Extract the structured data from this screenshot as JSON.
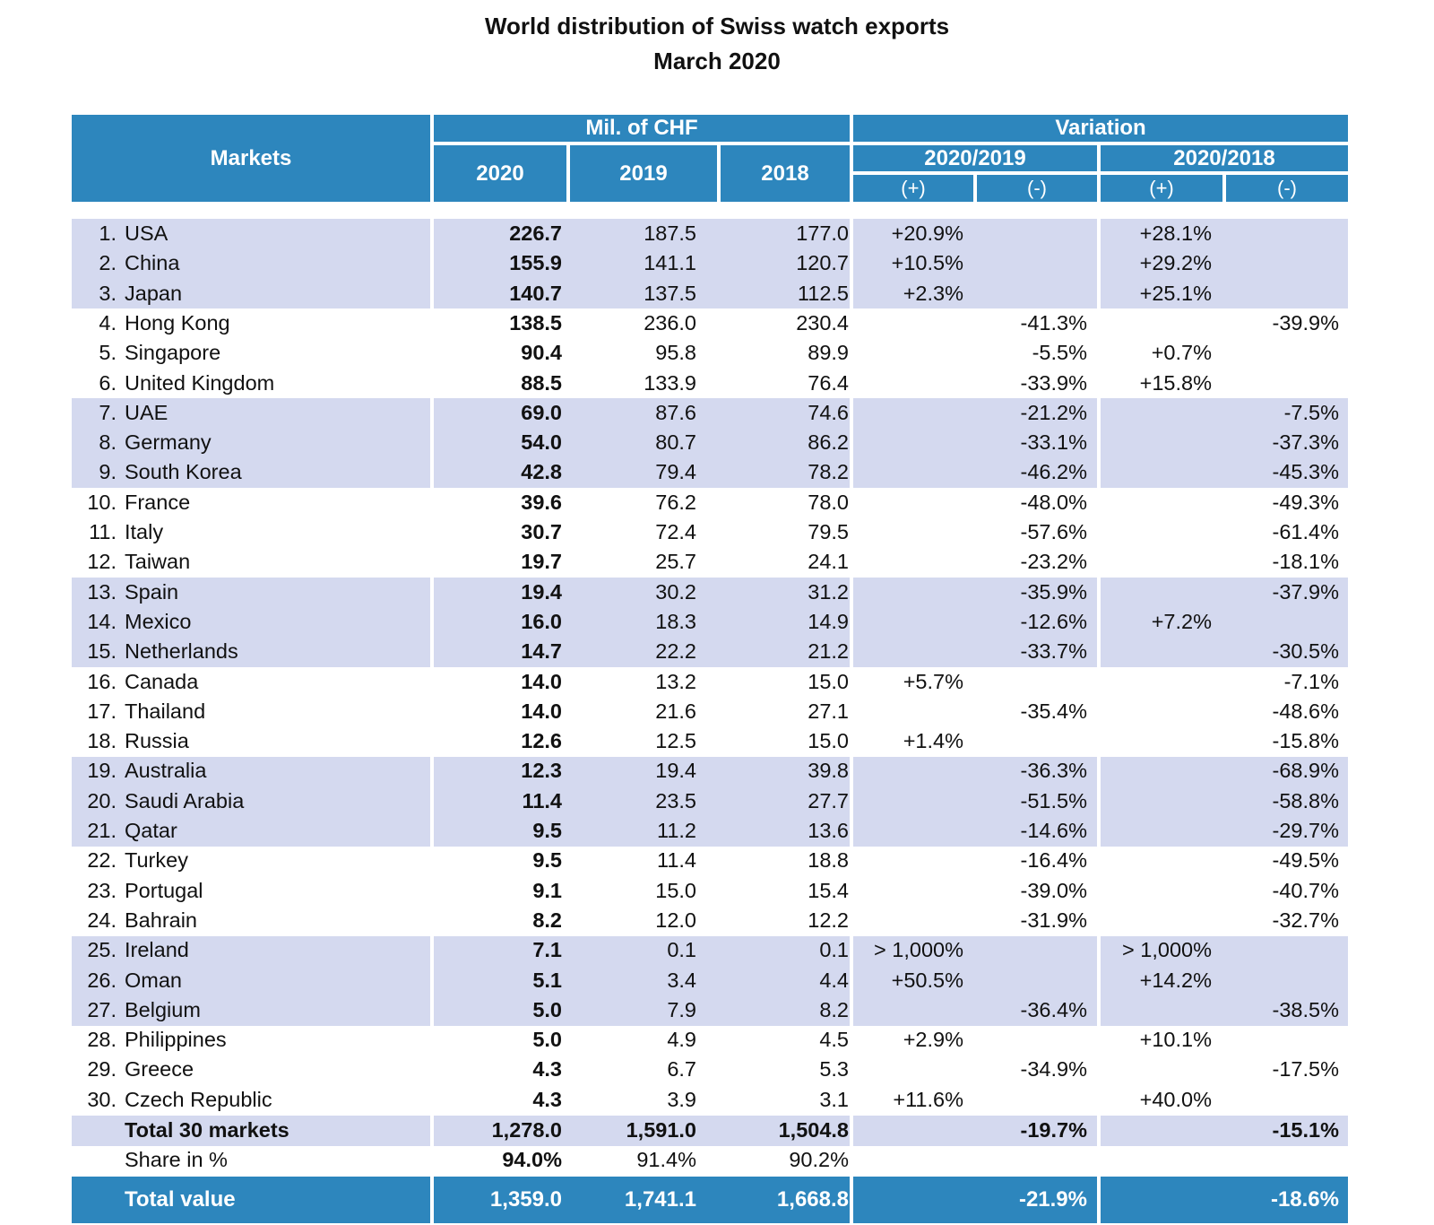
{
  "title": {
    "line1": "World distribution of Swiss watch exports",
    "line2": "March 2020"
  },
  "header": {
    "markets": "Markets",
    "mil_chf": "Mil. of CHF",
    "variation": "Variation",
    "y2020": "2020",
    "y2019": "2019",
    "y2018": "2018",
    "v2019": "2020/2019",
    "v2018": "2020/2018",
    "plus": "(+)",
    "minus": "(-)"
  },
  "rows": [
    {
      "rank": "1.",
      "name": "USA",
      "v2020": "226.7",
      "v2019": "187.5",
      "v2018": "177.0",
      "p1": "+20.9%",
      "m1": "",
      "p2": "+28.1%",
      "m2": ""
    },
    {
      "rank": "2.",
      "name": "China",
      "v2020": "155.9",
      "v2019": "141.1",
      "v2018": "120.7",
      "p1": "+10.5%",
      "m1": "",
      "p2": "+29.2%",
      "m2": ""
    },
    {
      "rank": "3.",
      "name": "Japan",
      "v2020": "140.7",
      "v2019": "137.5",
      "v2018": "112.5",
      "p1": "+2.3%",
      "m1": "",
      "p2": "+25.1%",
      "m2": ""
    },
    {
      "rank": "4.",
      "name": "Hong Kong",
      "v2020": "138.5",
      "v2019": "236.0",
      "v2018": "230.4",
      "p1": "",
      "m1": "-41.3%",
      "p2": "",
      "m2": "-39.9%"
    },
    {
      "rank": "5.",
      "name": "Singapore",
      "v2020": "90.4",
      "v2019": "95.8",
      "v2018": "89.9",
      "p1": "",
      "m1": "-5.5%",
      "p2": "+0.7%",
      "m2": ""
    },
    {
      "rank": "6.",
      "name": "United Kingdom",
      "v2020": "88.5",
      "v2019": "133.9",
      "v2018": "76.4",
      "p1": "",
      "m1": "-33.9%",
      "p2": "+15.8%",
      "m2": ""
    },
    {
      "rank": "7.",
      "name": "UAE",
      "v2020": "69.0",
      "v2019": "87.6",
      "v2018": "74.6",
      "p1": "",
      "m1": "-21.2%",
      "p2": "",
      "m2": "-7.5%"
    },
    {
      "rank": "8.",
      "name": "Germany",
      "v2020": "54.0",
      "v2019": "80.7",
      "v2018": "86.2",
      "p1": "",
      "m1": "-33.1%",
      "p2": "",
      "m2": "-37.3%"
    },
    {
      "rank": "9.",
      "name": "South Korea",
      "v2020": "42.8",
      "v2019": "79.4",
      "v2018": "78.2",
      "p1": "",
      "m1": "-46.2%",
      "p2": "",
      "m2": "-45.3%"
    },
    {
      "rank": "10.",
      "name": "France",
      "v2020": "39.6",
      "v2019": "76.2",
      "v2018": "78.0",
      "p1": "",
      "m1": "-48.0%",
      "p2": "",
      "m2": "-49.3%"
    },
    {
      "rank": "11.",
      "name": "Italy",
      "v2020": "30.7",
      "v2019": "72.4",
      "v2018": "79.5",
      "p1": "",
      "m1": "-57.6%",
      "p2": "",
      "m2": "-61.4%"
    },
    {
      "rank": "12.",
      "name": "Taiwan",
      "v2020": "19.7",
      "v2019": "25.7",
      "v2018": "24.1",
      "p1": "",
      "m1": "-23.2%",
      "p2": "",
      "m2": "-18.1%"
    },
    {
      "rank": "13.",
      "name": "Spain",
      "v2020": "19.4",
      "v2019": "30.2",
      "v2018": "31.2",
      "p1": "",
      "m1": "-35.9%",
      "p2": "",
      "m2": "-37.9%"
    },
    {
      "rank": "14.",
      "name": "Mexico",
      "v2020": "16.0",
      "v2019": "18.3",
      "v2018": "14.9",
      "p1": "",
      "m1": "-12.6%",
      "p2": "+7.2%",
      "m2": ""
    },
    {
      "rank": "15.",
      "name": "Netherlands",
      "v2020": "14.7",
      "v2019": "22.2",
      "v2018": "21.2",
      "p1": "",
      "m1": "-33.7%",
      "p2": "",
      "m2": "-30.5%"
    },
    {
      "rank": "16.",
      "name": "Canada",
      "v2020": "14.0",
      "v2019": "13.2",
      "v2018": "15.0",
      "p1": "+5.7%",
      "m1": "",
      "p2": "",
      "m2": "-7.1%"
    },
    {
      "rank": "17.",
      "name": "Thailand",
      "v2020": "14.0",
      "v2019": "21.6",
      "v2018": "27.1",
      "p1": "",
      "m1": "-35.4%",
      "p2": "",
      "m2": "-48.6%"
    },
    {
      "rank": "18.",
      "name": "Russia",
      "v2020": "12.6",
      "v2019": "12.5",
      "v2018": "15.0",
      "p1": "+1.4%",
      "m1": "",
      "p2": "",
      "m2": "-15.8%"
    },
    {
      "rank": "19.",
      "name": "Australia",
      "v2020": "12.3",
      "v2019": "19.4",
      "v2018": "39.8",
      "p1": "",
      "m1": "-36.3%",
      "p2": "",
      "m2": "-68.9%"
    },
    {
      "rank": "20.",
      "name": "Saudi Arabia",
      "v2020": "11.4",
      "v2019": "23.5",
      "v2018": "27.7",
      "p1": "",
      "m1": "-51.5%",
      "p2": "",
      "m2": "-58.8%"
    },
    {
      "rank": "21.",
      "name": "Qatar",
      "v2020": "9.5",
      "v2019": "11.2",
      "v2018": "13.6",
      "p1": "",
      "m1": "-14.6%",
      "p2": "",
      "m2": "-29.7%"
    },
    {
      "rank": "22.",
      "name": "Turkey",
      "v2020": "9.5",
      "v2019": "11.4",
      "v2018": "18.8",
      "p1": "",
      "m1": "-16.4%",
      "p2": "",
      "m2": "-49.5%"
    },
    {
      "rank": "23.",
      "name": "Portugal",
      "v2020": "9.1",
      "v2019": "15.0",
      "v2018": "15.4",
      "p1": "",
      "m1": "-39.0%",
      "p2": "",
      "m2": "-40.7%"
    },
    {
      "rank": "24.",
      "name": "Bahrain",
      "v2020": "8.2",
      "v2019": "12.0",
      "v2018": "12.2",
      "p1": "",
      "m1": "-31.9%",
      "p2": "",
      "m2": "-32.7%"
    },
    {
      "rank": "25.",
      "name": "Ireland",
      "v2020": "7.1",
      "v2019": "0.1",
      "v2018": "0.1",
      "p1": "> 1,000%",
      "m1": "",
      "p2": "> 1,000%",
      "m2": ""
    },
    {
      "rank": "26.",
      "name": "Oman",
      "v2020": "5.1",
      "v2019": "3.4",
      "v2018": "4.4",
      "p1": "+50.5%",
      "m1": "",
      "p2": "+14.2%",
      "m2": ""
    },
    {
      "rank": "27.",
      "name": "Belgium",
      "v2020": "5.0",
      "v2019": "7.9",
      "v2018": "8.2",
      "p1": "",
      "m1": "-36.4%",
      "p2": "",
      "m2": "-38.5%"
    },
    {
      "rank": "28.",
      "name": "Philippines",
      "v2020": "5.0",
      "v2019": "4.9",
      "v2018": "4.5",
      "p1": "+2.9%",
      "m1": "",
      "p2": "+10.1%",
      "m2": ""
    },
    {
      "rank": "29.",
      "name": "Greece",
      "v2020": "4.3",
      "v2019": "6.7",
      "v2018": "5.3",
      "p1": "",
      "m1": "-34.9%",
      "p2": "",
      "m2": "-17.5%"
    },
    {
      "rank": "30.",
      "name": "Czech Republic",
      "v2020": "4.3",
      "v2019": "3.9",
      "v2018": "3.1",
      "p1": "+11.6%",
      "m1": "",
      "p2": "+40.0%",
      "m2": ""
    }
  ],
  "total30": {
    "name": "Total 30 markets",
    "v2020": "1,278.0",
    "v2019": "1,591.0",
    "v2018": "1,504.8",
    "m1": "-19.7%",
    "m2": "-15.1%"
  },
  "share": {
    "name": "Share in %",
    "v2020": "94.0%",
    "v2019": "91.4%",
    "v2018": "90.2%"
  },
  "total_value": {
    "name": "Total value",
    "v2020": "1,359.0",
    "v2019": "1,741.1",
    "v2018": "1,668.8",
    "m1": "-21.9%",
    "m2": "-18.6%"
  },
  "colors": {
    "header_blue": "#2d86bd",
    "band_lavender": "#d4d9ef"
  }
}
